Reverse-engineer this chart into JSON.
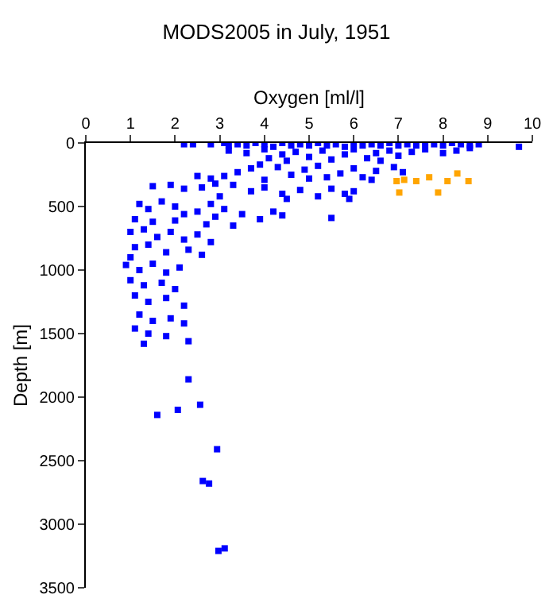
{
  "chart_data": {
    "type": "scatter",
    "title": "MODS2005 in July, 1951",
    "xlabel": "Oxygen [ml/l]",
    "ylabel": "Depth [m]",
    "xlim": [
      0,
      10
    ],
    "xticks": [
      0,
      1,
      2,
      3,
      4,
      5,
      6,
      7,
      8,
      9,
      10
    ],
    "ylim": [
      3500,
      0
    ],
    "yticks": [
      0,
      500,
      1000,
      1500,
      2000,
      2500,
      3000,
      3500
    ],
    "marker": "square",
    "series": [
      {
        "color": "#0000ff",
        "x": [
          2.2,
          2.4,
          2.8,
          3.1,
          3.2,
          3.4,
          3.6,
          3.8,
          4.0,
          4.2,
          4.4,
          4.6,
          4.8,
          5.0,
          5.2,
          5.4,
          5.6,
          5.8,
          6.0,
          6.2,
          6.4,
          6.6,
          6.8,
          7.0,
          7.2,
          7.4,
          7.6,
          7.8,
          8.0,
          8.2,
          8.4,
          8.6,
          8.8,
          9.7,
          3.2,
          3.6,
          4.0,
          4.1,
          4.4,
          4.7,
          5.0,
          5.3,
          5.5,
          5.8,
          6.0,
          6.3,
          6.5,
          6.8,
          7.0,
          7.3,
          7.6,
          8.0,
          8.3,
          8.6,
          4.5,
          6.6,
          3.4,
          3.7,
          3.9,
          4.3,
          4.6,
          4.9,
          5.2,
          5.4,
          5.7,
          6.0,
          6.2,
          6.5,
          6.9,
          7.1,
          3.1,
          2.8,
          2.5,
          5.0,
          4.0,
          6.4,
          1.5,
          1.9,
          2.2,
          2.6,
          2.9,
          3.3,
          3.7,
          4.0,
          4.4,
          4.8,
          5.2,
          5.5,
          5.8,
          6.0,
          3.0,
          4.5,
          5.9,
          1.2,
          1.4,
          1.7,
          2.0,
          2.2,
          2.5,
          2.8,
          3.1,
          3.5,
          3.9,
          4.2,
          4.4,
          5.5,
          1.1,
          1.5,
          2.0,
          2.7,
          3.3,
          2.9,
          1.0,
          1.3,
          1.6,
          1.9,
          2.2,
          2.5,
          2.8,
          1.1,
          1.4,
          1.8,
          2.3,
          2.6,
          1.0,
          0.9,
          1.2,
          1.5,
          1.8,
          2.1,
          1.0,
          1.3,
          1.7,
          2.0,
          1.1,
          1.4,
          1.8,
          2.2,
          1.2,
          1.5,
          1.9,
          2.2,
          1.1,
          1.4,
          1.8,
          2.3,
          1.3,
          2.3,
          2.56,
          2.06,
          1.6,
          2.94,
          2.62,
          2.76,
          2.97,
          3.11
        ],
        "values": [
          10,
          10,
          10,
          0,
          20,
          10,
          20,
          0,
          10,
          30,
          0,
          20,
          10,
          20,
          0,
          20,
          10,
          30,
          0,
          20,
          10,
          20,
          0,
          20,
          10,
          20,
          0,
          10,
          20,
          0,
          10,
          20,
          10,
          30,
          60,
          80,
          50,
          120,
          90,
          70,
          110,
          60,
          130,
          90,
          50,
          120,
          80,
          60,
          100,
          70,
          50,
          80,
          60,
          40,
          140,
          140,
          230,
          200,
          170,
          190,
          250,
          210,
          180,
          270,
          240,
          200,
          270,
          220,
          190,
          230,
          260,
          280,
          260,
          280,
          290,
          290,
          340,
          330,
          360,
          350,
          320,
          330,
          380,
          350,
          400,
          370,
          420,
          360,
          400,
          380,
          420,
          440,
          440,
          480,
          520,
          460,
          500,
          560,
          540,
          480,
          520,
          560,
          600,
          540,
          570,
          590,
          600,
          620,
          610,
          640,
          650,
          580,
          700,
          680,
          740,
          700,
          760,
          720,
          780,
          820,
          800,
          860,
          840,
          880,
          900,
          960,
          1000,
          950,
          1020,
          980,
          1080,
          1120,
          1100,
          1150,
          1200,
          1250,
          1220,
          1280,
          1350,
          1400,
          1380,
          1420,
          1460,
          1500,
          1520,
          1560,
          1580,
          1860,
          2060,
          2100,
          2140,
          2410,
          2660,
          2680,
          3210,
          3190
        ]
      },
      {
        "color": "#ffa500",
        "x": [
          6.96,
          7.13,
          7.4,
          7.69,
          8.1,
          8.32,
          8.57,
          7.02,
          7.89
        ],
        "values": [
          300,
          290,
          300,
          270,
          300,
          240,
          300,
          390,
          390
        ]
      }
    ]
  }
}
